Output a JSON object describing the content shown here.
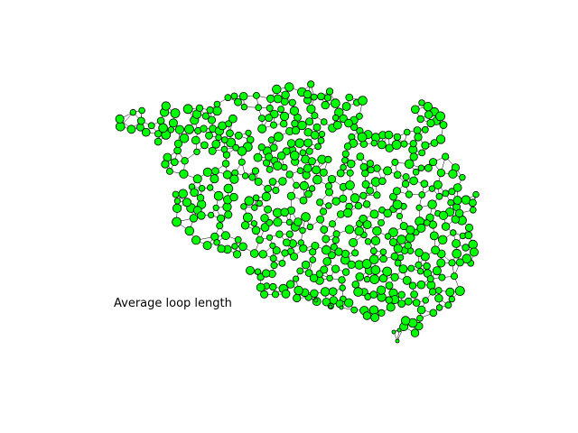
{
  "figure": {
    "caption": "Average loop length"
  },
  "graph": {
    "node_color": "#00ff00",
    "node_edge_color": "#000000",
    "edge_color": "#000000",
    "background": "#ffffff"
  }
}
